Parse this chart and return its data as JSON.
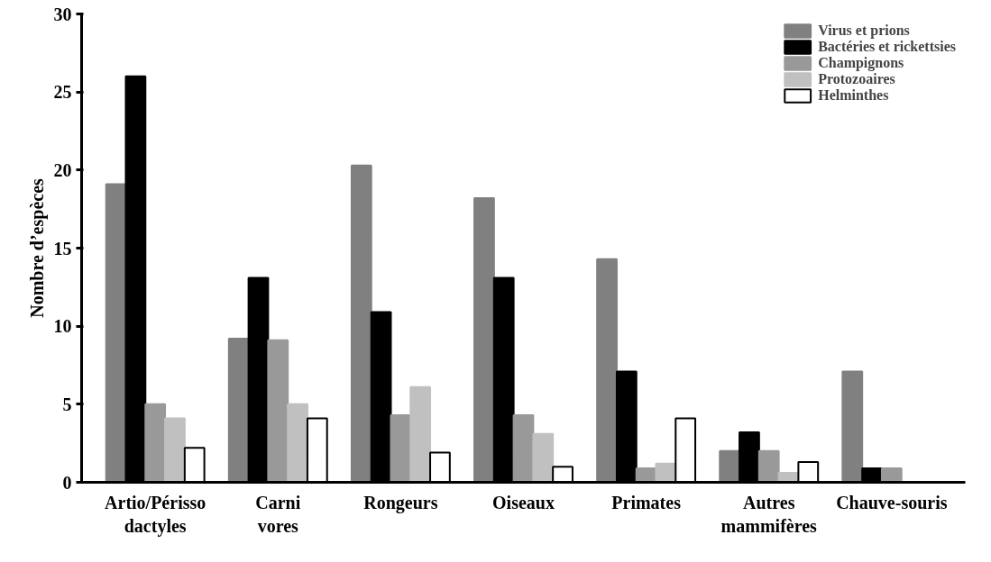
{
  "chart_data": {
    "type": "bar",
    "ylabel": "Nombre d’espèces",
    "categories": [
      "Artio/Périsso\ndactyles",
      "Carni\nvores",
      "Rongeurs",
      "Oiseaux",
      "Primates",
      "Autres\nmammifères",
      "Chauve-souris"
    ],
    "series": [
      {
        "name": "Virus et prions",
        "color": "#808080",
        "values": [
          19.1,
          9.2,
          20.3,
          18.2,
          14.3,
          2.0,
          7.1
        ]
      },
      {
        "name": "Bactéries et rickettsies",
        "color": "#000000",
        "values": [
          26,
          13.1,
          10.9,
          13.1,
          7.1,
          3.2,
          0.9
        ]
      },
      {
        "name": "Champignons",
        "color": "#999999",
        "values": [
          5.0,
          9.1,
          4.3,
          4.3,
          0.9,
          2.0,
          0.9
        ]
      },
      {
        "name": "Protozoaires",
        "color": "#c0c0c0",
        "values": [
          4.1,
          5.0,
          6.1,
          3.1,
          1.2,
          0.6,
          null
        ]
      },
      {
        "name": "Helminthes",
        "color": "#ffffff",
        "values": [
          2.2,
          4.1,
          1.9,
          1.0,
          4.1,
          1.3,
          null
        ]
      }
    ],
    "ylim": [
      0,
      30
    ],
    "yticks": [
      0,
      5,
      10,
      15,
      20,
      25,
      30
    ],
    "grid": false,
    "legend": "top right"
  }
}
